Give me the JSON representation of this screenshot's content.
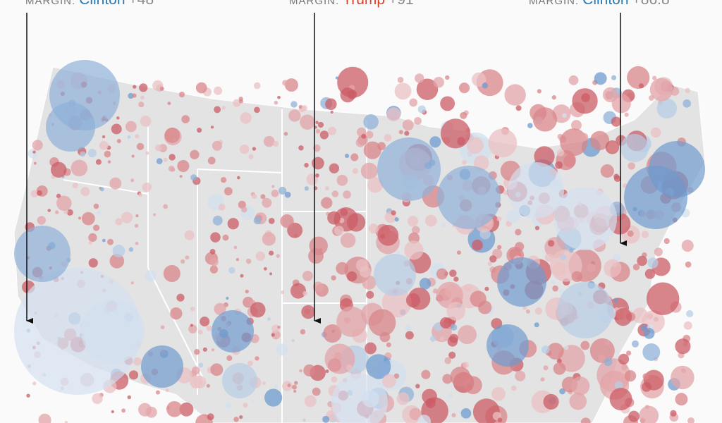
{
  "annotations": [
    {
      "label": "MARGIN:",
      "candidate": "Clinton",
      "margin": "+48",
      "color": "#2a7ab5"
    },
    {
      "label": "MARGIN:",
      "candidate": "Trump",
      "margin": "+91",
      "color": "#d9412b"
    },
    {
      "label": "MARGIN:",
      "candidate": "Clinton",
      "margin": "+86.8",
      "color": "#2a7ab5"
    }
  ]
}
